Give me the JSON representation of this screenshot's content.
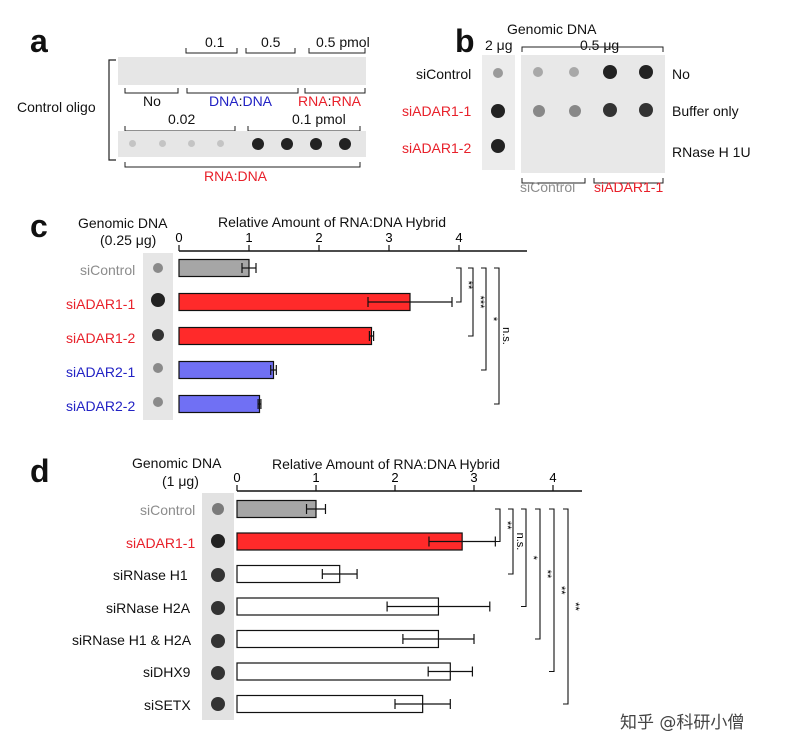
{
  "panel_a": {
    "label": "a",
    "side_label": "Control oligo",
    "top_amounts": [
      "0.1",
      "0.5",
      "0.5 pmol"
    ],
    "top_groups": [
      "No",
      "DNA",
      ":",
      "DNA",
      "RNA",
      ":",
      "RNA"
    ],
    "bottom_amounts": [
      "0.02",
      "0.1 pmol"
    ],
    "bottom_group": [
      "RNA",
      ":",
      "DNA"
    ]
  },
  "panel_b": {
    "label": "b",
    "title": "Genomic DNA",
    "amount_left": "2 μg",
    "amount_right": "0.5 μg",
    "rows": [
      "siControl",
      "siADAR1-1",
      "siADAR1-2"
    ],
    "right_labels": [
      "No",
      "Buffer only",
      "RNase H 1U"
    ],
    "bottom_groups": [
      "siControl",
      "siADAR1-1"
    ]
  },
  "panel_c": {
    "label": "c",
    "blot_title": [
      "Genomic DNA",
      "(0.25 μg)"
    ],
    "axis_title": "Relative Amount of RNA:DNA Hybrid",
    "significance": [
      "**",
      "***",
      "*",
      "n.s."
    ]
  },
  "panel_d": {
    "label": "d",
    "blot_title": [
      "Genomic DNA",
      "(1 μg)"
    ],
    "axis_title": "Relative Amount of RNA:DNA Hybrid",
    "significance": [
      "**",
      "n.s.",
      "*",
      "**",
      "**",
      "**"
    ]
  },
  "watermark": "知乎 @科研小僧",
  "chart_data": [
    {
      "type": "bar",
      "orientation": "horizontal",
      "title": "",
      "xlabel": "Relative Amount of RNA:DNA Hybrid",
      "xlim": [
        0,
        4.8
      ],
      "xticks": [
        "0",
        "1",
        "2",
        "3",
        "4"
      ],
      "categories": [
        "siControl",
        "siADAR1-1",
        "siADAR1-2",
        "siADAR2-1",
        "siADAR2-2"
      ],
      "values": [
        1.0,
        3.3,
        2.75,
        1.35,
        1.15
      ],
      "errors": [
        0.1,
        0.6,
        0.03,
        0.04,
        0.02
      ],
      "colors": [
        "#a6a6a6",
        "#ff2a2a",
        "#ff2a2a",
        "#7070f4",
        "#7070f4"
      ]
    },
    {
      "type": "bar",
      "orientation": "horizontal",
      "title": "",
      "xlabel": "Relative Amount of RNA:DNA Hybrid",
      "xlim": [
        0,
        4.3
      ],
      "xticks": [
        "0",
        "1",
        "2",
        "3",
        "4"
      ],
      "categories": [
        "siControl",
        "siADAR1-1",
        "siRNase H1",
        "siRNase H2A",
        "siRNase H1 & H2A",
        "siDHX9",
        "siSETX"
      ],
      "values": [
        1.0,
        2.85,
        1.3,
        2.55,
        2.55,
        2.7,
        2.35
      ],
      "errors": [
        0.12,
        0.42,
        0.22,
        0.65,
        0.45,
        0.28,
        0.35
      ],
      "colors": [
        "#a6a6a6",
        "#ff2a2a",
        "#ffffff",
        "#ffffff",
        "#ffffff",
        "#ffffff",
        "#ffffff"
      ]
    }
  ]
}
